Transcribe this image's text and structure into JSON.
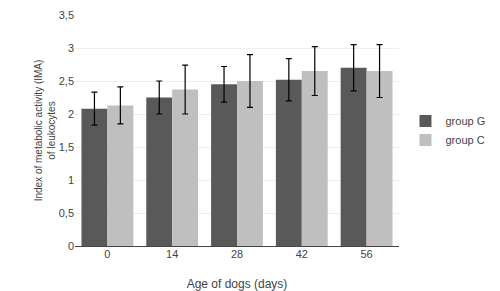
{
  "chart_data": {
    "type": "bar",
    "xlabel": "Age of dogs (days)",
    "ylabel": "Index of metabolic activity (IMA)\nof leukocytes",
    "categories": [
      0,
      14,
      28,
      42,
      56
    ],
    "series": [
      {
        "name": "group G",
        "color": "#595959",
        "values": [
          2.08,
          2.25,
          2.45,
          2.52,
          2.7
        ],
        "errors": [
          0.25,
          0.25,
          0.27,
          0.32,
          0.35
        ]
      },
      {
        "name": "group C",
        "color": "#bfbfbf",
        "values": [
          2.13,
          2.37,
          2.5,
          2.65,
          2.65
        ],
        "errors": [
          0.28,
          0.37,
          0.4,
          0.37,
          0.4
        ]
      }
    ],
    "ylim": [
      0,
      3.5
    ],
    "yticks": [
      0,
      {
        "value": 0.5,
        "label": "0,5"
      },
      1,
      {
        "value": 1.5,
        "label": "1,5"
      },
      2,
      {
        "value": 2.5,
        "label": "2,5"
      },
      3,
      {
        "value": 3.5,
        "label": "3,5"
      }
    ],
    "grid": true,
    "legend": "right"
  }
}
